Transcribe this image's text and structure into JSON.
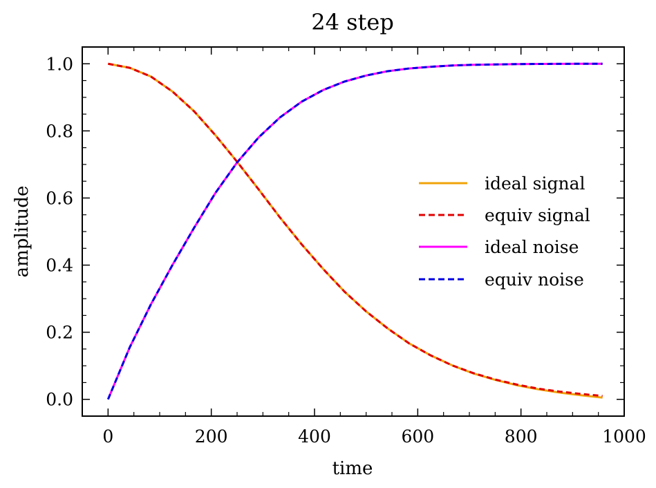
{
  "chart_data": {
    "type": "line",
    "title": "24 step",
    "xlabel": "time",
    "ylabel": "amplitude",
    "xlim": [
      -50,
      1000
    ],
    "ylim": [
      -0.05,
      1.05
    ],
    "x_ticks": [
      0,
      200,
      400,
      600,
      800,
      1000
    ],
    "y_ticks": [
      0.0,
      0.2,
      0.4,
      0.6,
      0.8,
      1.0
    ],
    "x_tick_labels": [
      "0",
      "200",
      "400",
      "600",
      "800",
      "1000"
    ],
    "y_tick_labels": [
      "0.0",
      "0.2",
      "0.4",
      "0.6",
      "0.8",
      "1.0"
    ],
    "grid": false,
    "legend_position": "center-right",
    "x": [
      0,
      42,
      83,
      125,
      167,
      208,
      250,
      292,
      333,
      375,
      417,
      458,
      500,
      542,
      583,
      625,
      667,
      708,
      750,
      792,
      833,
      875,
      917,
      958
    ],
    "series": [
      {
        "name": "ideal signal",
        "color": "#f0a30a",
        "style": "solid",
        "values": [
          1.0,
          0.988,
          0.962,
          0.917,
          0.858,
          0.787,
          0.708,
          0.625,
          0.542,
          0.462,
          0.388,
          0.321,
          0.262,
          0.211,
          0.167,
          0.131,
          0.101,
          0.077,
          0.058,
          0.042,
          0.03,
          0.02,
          0.012,
          0.005
        ]
      },
      {
        "name": "equiv signal",
        "color": "#e00000",
        "style": "dashed",
        "values": [
          1.0,
          0.988,
          0.962,
          0.917,
          0.858,
          0.787,
          0.708,
          0.625,
          0.542,
          0.462,
          0.388,
          0.321,
          0.262,
          0.211,
          0.167,
          0.131,
          0.101,
          0.078,
          0.059,
          0.044,
          0.032,
          0.023,
          0.016,
          0.01
        ]
      },
      {
        "name": "ideal noise",
        "color": "#ff00ff",
        "style": "solid",
        "values": [
          0.0,
          0.155,
          0.283,
          0.401,
          0.512,
          0.615,
          0.706,
          0.781,
          0.84,
          0.887,
          0.922,
          0.947,
          0.965,
          0.978,
          0.986,
          0.991,
          0.995,
          0.997,
          0.998,
          0.999,
          0.9995,
          0.9998,
          1.0,
          1.0
        ]
      },
      {
        "name": "equiv noise",
        "color": "#0000e0",
        "style": "dashed",
        "values": [
          0.0,
          0.155,
          0.283,
          0.401,
          0.512,
          0.615,
          0.706,
          0.781,
          0.84,
          0.887,
          0.922,
          0.947,
          0.965,
          0.978,
          0.986,
          0.991,
          0.995,
          0.997,
          0.998,
          0.999,
          0.9995,
          0.9998,
          1.0,
          1.0
        ]
      }
    ]
  }
}
